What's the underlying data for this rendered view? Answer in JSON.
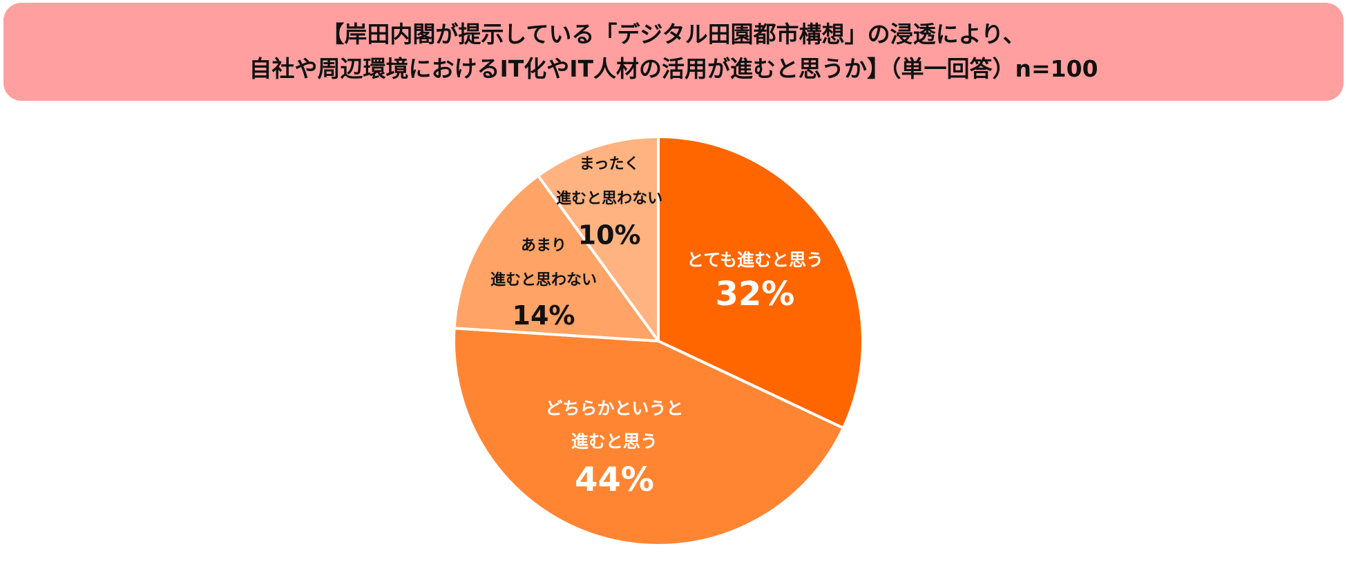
{
  "header": {
    "title_line1": "【岸田内閣が提示している「デジタル田園都市構想」の浸透により、",
    "title_line2": "自社や周辺環境におけるIT化やIT人材の活用が進むと思うか】（単一回答）n=100"
  },
  "colors": {
    "header_bg": "#ff9f9f",
    "slice_1": "#ff6600",
    "slice_2": "#ff8533",
    "slice_3": "#ffa366",
    "slice_4": "#ffb380",
    "slice_border": "#ffffff",
    "label_light": "#ffffff",
    "label_dark": "#111111"
  },
  "chart_data": {
    "type": "pie",
    "n": 100,
    "start_angle_deg": 0,
    "direction": "clockwise",
    "slices": [
      {
        "label_lines": [
          "とても進むと思う"
        ],
        "value": 32,
        "pct_text": "32%",
        "color": "#ff6600",
        "text_color": "#ffffff"
      },
      {
        "label_lines": [
          "どちらかというと",
          "進むと思う"
        ],
        "value": 44,
        "pct_text": "44%",
        "color": "#ff8533",
        "text_color": "#ffffff"
      },
      {
        "label_lines": [
          "あまり",
          "進むと思わない"
        ],
        "value": 14,
        "pct_text": "14%",
        "color": "#ffa366",
        "text_color": "#111111"
      },
      {
        "label_lines": [
          "まったく",
          "進むと思わない"
        ],
        "value": 10,
        "pct_text": "10%",
        "color": "#ffb380",
        "text_color": "#111111"
      }
    ]
  }
}
